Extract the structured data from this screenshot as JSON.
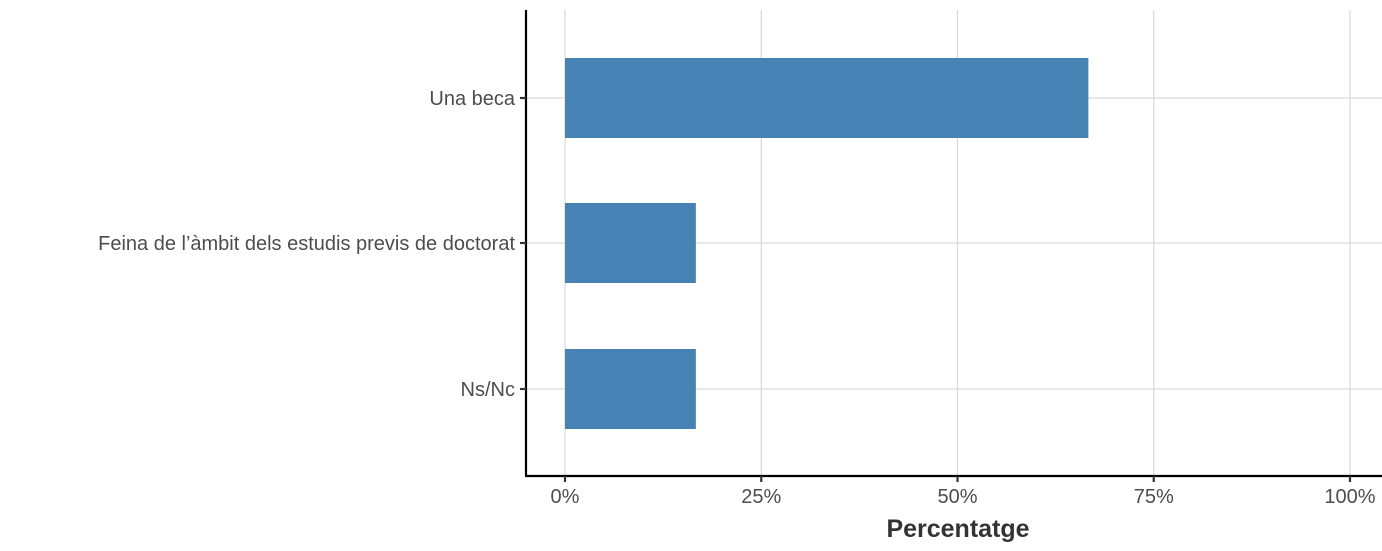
{
  "chart_data": {
    "type": "bar",
    "orientation": "horizontal",
    "categories": [
      "Una beca",
      "Feina de l’àmbit dels estudis previs de doctorat",
      "Ns/Nc"
    ],
    "values": [
      66.67,
      16.67,
      16.67
    ],
    "xlabel": "Percentatge",
    "ylabel": "",
    "xlim": [
      0,
      100
    ],
    "xticks": [
      0,
      25,
      50,
      75,
      100
    ],
    "xtick_labels": [
      "0%",
      "25%",
      "50%",
      "75%",
      "100%"
    ],
    "bar_color": "#4682B4",
    "grid": true,
    "legend": "none"
  }
}
